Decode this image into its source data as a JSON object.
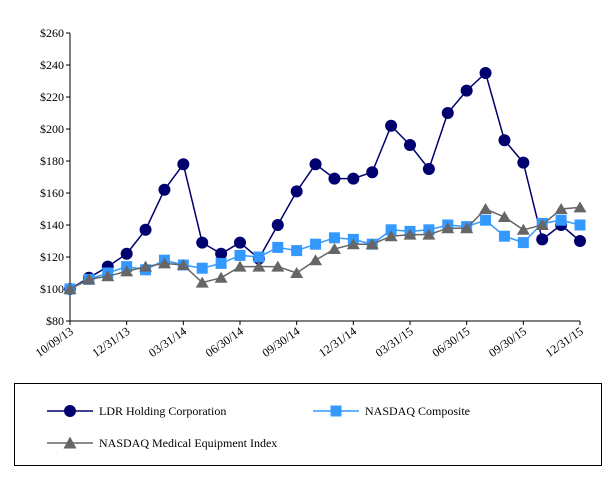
{
  "chart_data": {
    "type": "line",
    "title": "",
    "xlabel": "",
    "ylabel": "",
    "ylim": [
      80,
      260
    ],
    "y_ticks": [
      80,
      100,
      120,
      140,
      160,
      180,
      200,
      220,
      240,
      260
    ],
    "y_tick_labels": [
      "$80",
      "$100",
      "$120",
      "$140",
      "$160",
      "$180",
      "$200",
      "$220",
      "$240",
      "$260"
    ],
    "x_tick_labels": [
      "10/09/13",
      "12/31/13",
      "03/31/14",
      "06/30/14",
      "09/30/14",
      "12/31/14",
      "03/31/15",
      "06/30/15",
      "09/30/15",
      "12/31/15"
    ],
    "x_tick_indices": [
      0,
      3,
      6,
      9,
      12,
      15,
      18,
      21,
      24,
      27
    ],
    "grid": false,
    "legend_position": "bottom",
    "series": [
      {
        "name": "LDR Holding Corporation",
        "color": "#00006e",
        "marker": "circle",
        "values": [
          100,
          107,
          114,
          122,
          137,
          162,
          178,
          129,
          122,
          129,
          119,
          140,
          161,
          178,
          169,
          169,
          173,
          202,
          190,
          175,
          210,
          224,
          235,
          193,
          179,
          131,
          140,
          130
        ]
      },
      {
        "name": "NASDAQ Composite",
        "color": "#3399ff",
        "marker": "square",
        "values": [
          100,
          106,
          110,
          114,
          112,
          118,
          115,
          113,
          116,
          121,
          120,
          126,
          124,
          128,
          132,
          131,
          128,
          137,
          136,
          137,
          140,
          139,
          143,
          133,
          129,
          141,
          143,
          140
        ]
      },
      {
        "name": "NASDAQ Medical Equipment Index",
        "color": "#666666",
        "marker": "triangle",
        "values": [
          100,
          106,
          108,
          111,
          114,
          116,
          115,
          104,
          107,
          114,
          114,
          114,
          110,
          118,
          125,
          128,
          128,
          133,
          134,
          134,
          138,
          138,
          150,
          145,
          137,
          140,
          150,
          151
        ]
      }
    ]
  }
}
